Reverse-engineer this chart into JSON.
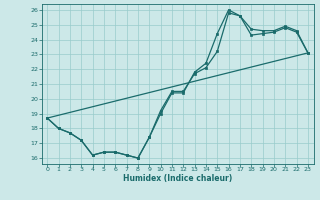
{
  "xlabel": "Humidex (Indice chaleur)",
  "ylabel": "",
  "bg_color": "#cce8e8",
  "grid_color": "#99cccc",
  "line_color": "#1a6b6b",
  "xlim": [
    -0.5,
    23.5
  ],
  "ylim": [
    15.6,
    26.4
  ],
  "xticks": [
    0,
    1,
    2,
    3,
    4,
    5,
    6,
    7,
    8,
    9,
    10,
    11,
    12,
    13,
    14,
    15,
    16,
    17,
    18,
    19,
    20,
    21,
    22,
    23
  ],
  "yticks": [
    16,
    17,
    18,
    19,
    20,
    21,
    22,
    23,
    24,
    25,
    26
  ],
  "line1_x": [
    0,
    1,
    2,
    3,
    4,
    5,
    6,
    7,
    8,
    9,
    10,
    11,
    12,
    13,
    14,
    15,
    16,
    17,
    18,
    19,
    20,
    21,
    22,
    23
  ],
  "line1_y": [
    18.7,
    18.0,
    17.7,
    17.2,
    16.2,
    16.4,
    16.4,
    16.2,
    16.0,
    17.4,
    19.2,
    20.5,
    20.5,
    21.7,
    22.1,
    23.2,
    25.8,
    25.6,
    24.7,
    24.6,
    24.6,
    24.9,
    24.6,
    23.1
  ],
  "line2_x": [
    0,
    1,
    2,
    3,
    4,
    5,
    6,
    7,
    8,
    9,
    10,
    11,
    12,
    13,
    14,
    15,
    16,
    17,
    18,
    19,
    20,
    21,
    22,
    23
  ],
  "line2_y": [
    18.7,
    18.0,
    17.7,
    17.2,
    16.2,
    16.4,
    16.4,
    16.2,
    16.0,
    17.4,
    19.0,
    20.4,
    20.4,
    21.8,
    22.4,
    24.4,
    26.0,
    25.6,
    24.3,
    24.4,
    24.5,
    24.8,
    24.5,
    23.1
  ],
  "line3_x": [
    0,
    23
  ],
  "line3_y": [
    18.7,
    23.1
  ]
}
